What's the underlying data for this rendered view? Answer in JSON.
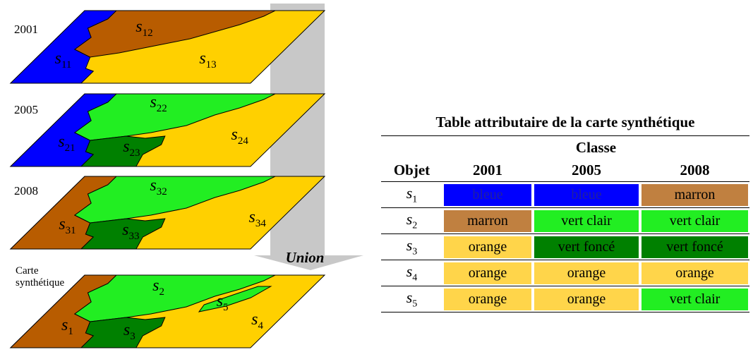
{
  "maps": [
    {
      "label": "2001",
      "regions": [
        {
          "name": "s",
          "index": "11",
          "color": "#0000ff"
        },
        {
          "name": "s",
          "index": "12",
          "color": "#b85c00"
        },
        {
          "name": "s",
          "index": "13",
          "color": "#ffd000"
        }
      ]
    },
    {
      "label": "2005",
      "regions": [
        {
          "name": "s",
          "index": "21",
          "color": "#0000ff"
        },
        {
          "name": "s",
          "index": "22",
          "color": "#22ee22"
        },
        {
          "name": "s",
          "index": "23",
          "color": "#008000"
        },
        {
          "name": "s",
          "index": "24",
          "color": "#ffd000"
        }
      ]
    },
    {
      "label": "2008",
      "regions": [
        {
          "name": "s",
          "index": "31",
          "color": "#b85c00"
        },
        {
          "name": "s",
          "index": "32",
          "color": "#22ee22"
        },
        {
          "name": "s",
          "index": "33",
          "color": "#008000"
        },
        {
          "name": "s",
          "index": "34",
          "color": "#ffd000"
        }
      ]
    },
    {
      "label": "Carte synthétique",
      "regions": [
        {
          "name": "s",
          "index": "1",
          "color": "#b85c00"
        },
        {
          "name": "s",
          "index": "2",
          "color": "#22ee22"
        },
        {
          "name": "s",
          "index": "3",
          "color": "#008000"
        },
        {
          "name": "s",
          "index": "4",
          "color": "#ffd000"
        },
        {
          "name": "s",
          "index": "5",
          "color": "#22ee22"
        }
      ]
    }
  ],
  "arrow": {
    "label": "Union"
  },
  "table": {
    "title": "Table attributaire de la carte synthétique",
    "group_header": "Classe",
    "columns": [
      "Objet",
      "2001",
      "2005",
      "2008"
    ],
    "rows": [
      {
        "object": {
          "name": "s",
          "index": "1"
        },
        "cells": [
          {
            "text": "bleue",
            "color": "#0000ff"
          },
          {
            "text": "bleue",
            "color": "#0000ff"
          },
          {
            "text": "marron",
            "color": "#c08040"
          }
        ]
      },
      {
        "object": {
          "name": "s",
          "index": "2"
        },
        "cells": [
          {
            "text": "marron",
            "color": "#c08040"
          },
          {
            "text": "vert clair",
            "color": "#22ee22"
          },
          {
            "text": "vert clair",
            "color": "#22ee22"
          }
        ]
      },
      {
        "object": {
          "name": "s",
          "index": "3"
        },
        "cells": [
          {
            "text": "orange",
            "color": "#ffd54a"
          },
          {
            "text": "vert foncé",
            "color": "#008000"
          },
          {
            "text": "vert foncé",
            "color": "#008000"
          }
        ]
      },
      {
        "object": {
          "name": "s",
          "index": "4"
        },
        "cells": [
          {
            "text": "orange",
            "color": "#ffd54a"
          },
          {
            "text": "orange",
            "color": "#ffd54a"
          },
          {
            "text": "orange",
            "color": "#ffd54a"
          }
        ]
      },
      {
        "object": {
          "name": "s",
          "index": "5"
        },
        "cells": [
          {
            "text": "orange",
            "color": "#ffd54a"
          },
          {
            "text": "orange",
            "color": "#ffd54a"
          },
          {
            "text": "vert clair",
            "color": "#22ee22"
          }
        ]
      }
    ]
  }
}
